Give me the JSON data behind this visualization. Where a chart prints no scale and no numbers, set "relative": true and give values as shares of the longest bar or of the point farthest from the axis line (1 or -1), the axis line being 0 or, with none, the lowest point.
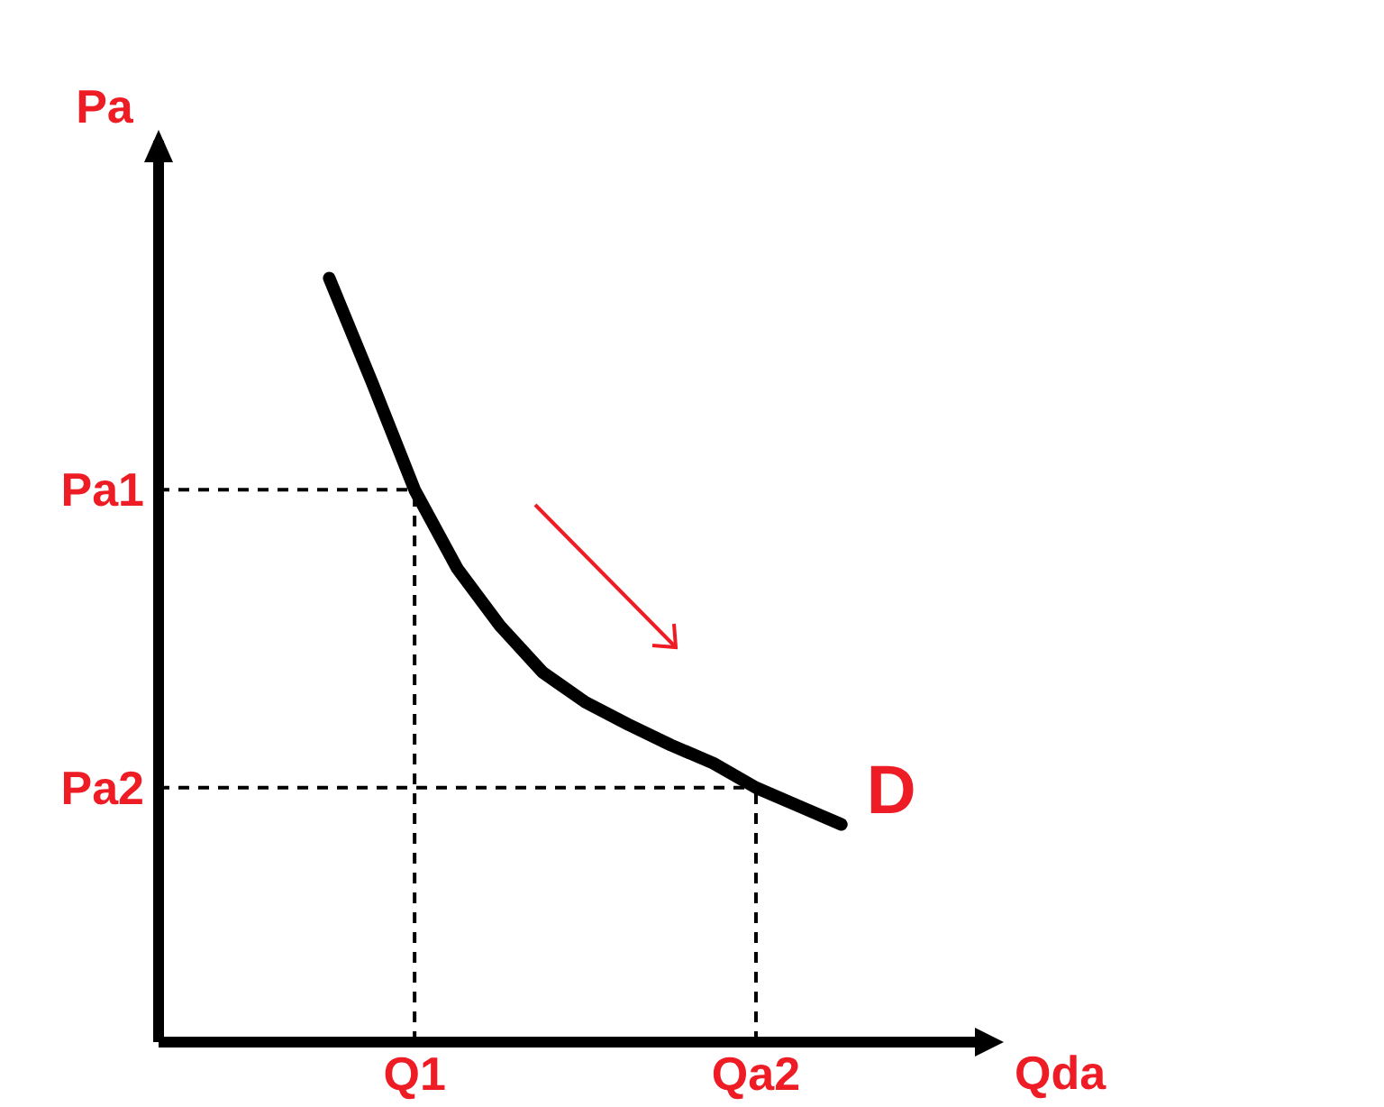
{
  "chart_data": {
    "type": "line",
    "xlabel": "Qda",
    "ylabel": "Pa",
    "relative": true,
    "categories": [
      null,
      null,
      "Q1",
      null,
      null,
      null,
      null,
      null,
      null,
      null,
      "Qa2",
      null,
      null
    ],
    "series": [
      {
        "color": "#000000",
        "values": [
          1,
          0.864,
          0.723,
          0.62,
          0.545,
          0.484,
          0.445,
          0.416,
          0.389,
          0.365,
          0.333,
          0.309,
          0.285
        ]
      }
    ],
    "ref_lines": [
      {
        "axis": "y",
        "value": 0.723,
        "label": "Pa1",
        "line_style": "dashed",
        "color": "#000000"
      },
      {
        "axis": "x",
        "value": "Q1",
        "line_style": "dashed",
        "color": "#000000"
      },
      {
        "axis": "y",
        "value": 0.333,
        "label": "Pa2",
        "line_style": "dashed",
        "color": "#000000"
      },
      {
        "axis": "x",
        "value": "Qa2",
        "line_style": "dashed",
        "color": "#000000"
      }
    ],
    "annotations": [
      "D"
    ],
    "marker": "none",
    "line_style": "solid"
  }
}
